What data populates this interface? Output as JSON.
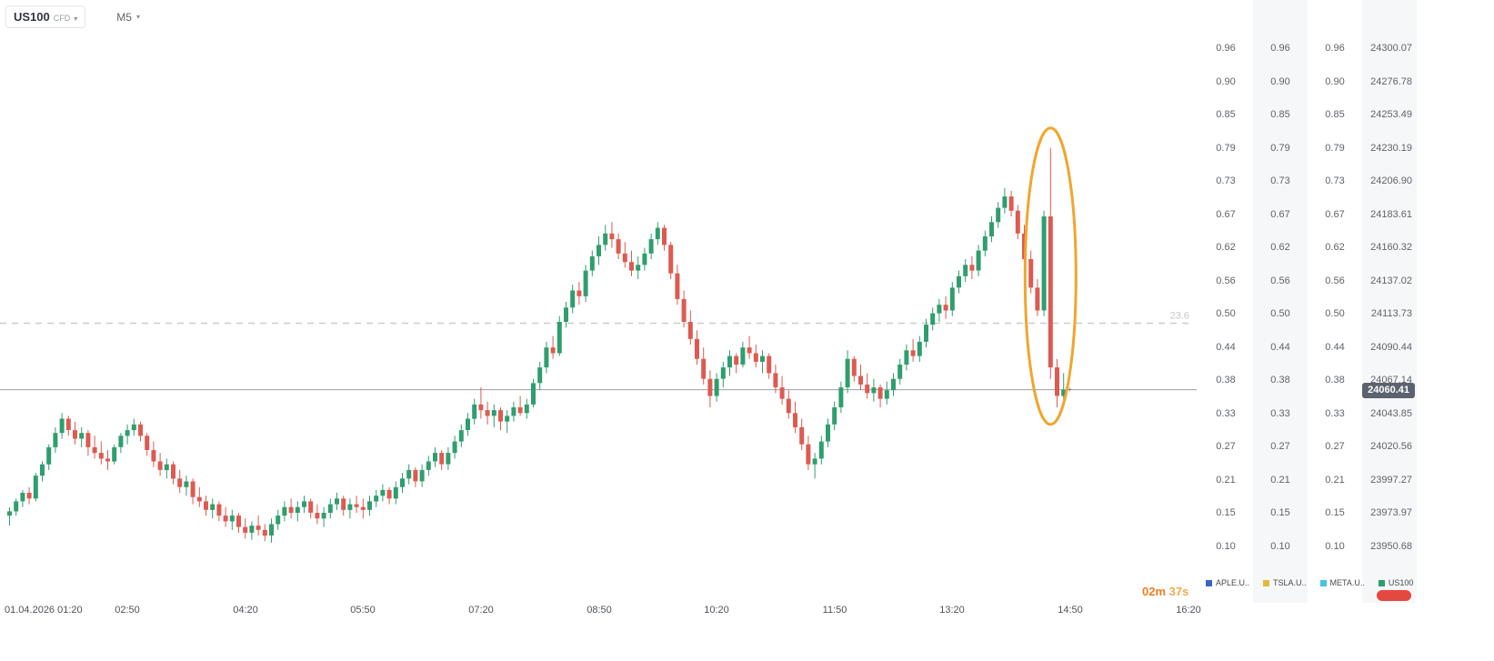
{
  "header": {
    "symbol": "US100",
    "instrument_type": "CFD",
    "timeframe": "M5"
  },
  "right_panel": {
    "percent_values": [
      "0.96",
      "0.90",
      "0.85",
      "0.79",
      "0.73",
      "0.67",
      "0.62",
      "0.56",
      "0.50",
      "0.44",
      "0.38",
      "0.33",
      "0.27",
      "0.21",
      "0.15",
      "0.10"
    ],
    "percent_column_count": 3,
    "price_values": [
      "24300.07",
      "24276.78",
      "24253.49",
      "24230.19",
      "24206.90",
      "24183.61",
      "24160.32",
      "24137.02",
      "24113.73",
      "24090.44",
      "24067.14",
      "24043.85",
      "24020.56",
      "23997.27",
      "23973.97",
      "23950.68"
    ]
  },
  "chart_data": {
    "type": "candlestick",
    "symbol": "US100",
    "interval": "M5",
    "start_time": "01.04.2026 01:20",
    "time_labels": [
      "01.04.2026 01:20",
      "02:50",
      "04:20",
      "05:50",
      "07:20",
      "08:50",
      "10:20",
      "11:50",
      "13:20",
      "14:50",
      "16:20"
    ],
    "price_axis": [
      24300.07,
      24276.78,
      24253.49,
      24230.19,
      24206.9,
      24183.61,
      24160.32,
      24137.02,
      24113.73,
      24090.44,
      24067.14,
      24043.85,
      24020.56,
      23997.27,
      23973.97,
      23950.68
    ],
    "percent_axis": [
      0.96,
      0.9,
      0.85,
      0.79,
      0.73,
      0.67,
      0.62,
      0.56,
      0.5,
      0.44,
      0.38,
      0.33,
      0.27,
      0.21,
      0.15,
      0.1
    ],
    "ylim": [
      23911,
      24334
    ],
    "fib_level": {
      "label": "23.6",
      "price": 24107
    },
    "current_price": 24060.41,
    "current_price_label": "24060.41",
    "colors": {
      "up": "#2f9e6e",
      "down": "#dd5a52"
    },
    "candles": [
      [
        23972,
        23978,
        23965,
        23975
      ],
      [
        23975,
        23984,
        23972,
        23982
      ],
      [
        23982,
        23990,
        23978,
        23988
      ],
      [
        23988,
        23992,
        23980,
        23984
      ],
      [
        23984,
        24002,
        23982,
        24000
      ],
      [
        24000,
        24010,
        23996,
        24008
      ],
      [
        24008,
        24022,
        24004,
        24020
      ],
      [
        24020,
        24034,
        24016,
        24030
      ],
      [
        24030,
        24044,
        24026,
        24040
      ],
      [
        24040,
        24042,
        24028,
        24032
      ],
      [
        24032,
        24038,
        24022,
        24026
      ],
      [
        24026,
        24034,
        24020,
        24030
      ],
      [
        24030,
        24032,
        24014,
        24020
      ],
      [
        24020,
        24028,
        24012,
        24016
      ],
      [
        24016,
        24024,
        24008,
        24012
      ],
      [
        24012,
        24018,
        24004,
        24010
      ],
      [
        24010,
        24022,
        24008,
        24020
      ],
      [
        24020,
        24030,
        24016,
        24028
      ],
      [
        24028,
        24036,
        24022,
        24032
      ],
      [
        24032,
        24040,
        24028,
        24036
      ],
      [
        24036,
        24038,
        24024,
        24028
      ],
      [
        24028,
        24030,
        24014,
        24018
      ],
      [
        24018,
        24024,
        24006,
        24010
      ],
      [
        24010,
        24016,
        24000,
        24004
      ],
      [
        24004,
        24012,
        23998,
        24008
      ],
      [
        24008,
        24010,
        23994,
        23998
      ],
      [
        23998,
        24004,
        23988,
        23992
      ],
      [
        23992,
        24000,
        23986,
        23996
      ],
      [
        23996,
        23998,
        23980,
        23985
      ],
      [
        23985,
        23992,
        23978,
        23982
      ],
      [
        23982,
        23986,
        23972,
        23976
      ],
      [
        23976,
        23984,
        23970,
        23980
      ],
      [
        23980,
        23982,
        23968,
        23972
      ],
      [
        23972,
        23978,
        23964,
        23968
      ],
      [
        23968,
        23976,
        23962,
        23972
      ],
      [
        23972,
        23974,
        23960,
        23964
      ],
      [
        23964,
        23970,
        23956,
        23960
      ],
      [
        23960,
        23968,
        23955,
        23965
      ],
      [
        23965,
        23972,
        23958,
        23962
      ],
      [
        23962,
        23966,
        23954,
        23958
      ],
      [
        23958,
        23970,
        23953,
        23966
      ],
      [
        23966,
        23976,
        23962,
        23972
      ],
      [
        23972,
        23982,
        23968,
        23978
      ],
      [
        23978,
        23984,
        23970,
        23974
      ],
      [
        23974,
        23982,
        23968,
        23978
      ],
      [
        23978,
        23986,
        23974,
        23982
      ],
      [
        23982,
        23984,
        23970,
        23974
      ],
      [
        23974,
        23980,
        23966,
        23970
      ],
      [
        23970,
        23978,
        23964,
        23974
      ],
      [
        23974,
        23984,
        23970,
        23980
      ],
      [
        23980,
        23988,
        23976,
        23984
      ],
      [
        23984,
        23986,
        23972,
        23976
      ],
      [
        23976,
        23984,
        23970,
        23980
      ],
      [
        23980,
        23986,
        23974,
        23978
      ],
      [
        23978,
        23984,
        23970,
        23976
      ],
      [
        23976,
        23986,
        23972,
        23982
      ],
      [
        23982,
        23990,
        23978,
        23986
      ],
      [
        23986,
        23994,
        23982,
        23990
      ],
      [
        23990,
        23992,
        23980,
        23984
      ],
      [
        23984,
        23996,
        23980,
        23992
      ],
      [
        23992,
        24002,
        23988,
        23998
      ],
      [
        23998,
        24008,
        23994,
        24004
      ],
      [
        24004,
        24006,
        23992,
        23996
      ],
      [
        23996,
        24008,
        23992,
        24004
      ],
      [
        24004,
        24014,
        24000,
        24010
      ],
      [
        24010,
        24020,
        24006,
        24016
      ],
      [
        24016,
        24018,
        24004,
        24008
      ],
      [
        24008,
        24020,
        24004,
        24016
      ],
      [
        24016,
        24028,
        24012,
        24024
      ],
      [
        24024,
        24036,
        24020,
        24032
      ],
      [
        24032,
        24044,
        24028,
        24040
      ],
      [
        24040,
        24054,
        24036,
        24050
      ],
      [
        24050,
        24062,
        24040,
        24046
      ],
      [
        24046,
        24052,
        24036,
        24042
      ],
      [
        24042,
        24050,
        24034,
        24046
      ],
      [
        24046,
        24048,
        24032,
        24038
      ],
      [
        24038,
        24046,
        24030,
        24042
      ],
      [
        24042,
        24052,
        24038,
        24048
      ],
      [
        24048,
        24056,
        24042,
        24044
      ],
      [
        24044,
        24054,
        24040,
        24050
      ],
      [
        24050,
        24068,
        24048,
        24065
      ],
      [
        24065,
        24080,
        24060,
        24076
      ],
      [
        24076,
        24094,
        24072,
        24090
      ],
      [
        24090,
        24098,
        24082,
        24086
      ],
      [
        24086,
        24112,
        24084,
        24108
      ],
      [
        24108,
        24122,
        24104,
        24118
      ],
      [
        24118,
        24134,
        24114,
        24130
      ],
      [
        24130,
        24136,
        24120,
        24126
      ],
      [
        24126,
        24148,
        24122,
        24144
      ],
      [
        24144,
        24158,
        24140,
        24154
      ],
      [
        24154,
        24168,
        24148,
        24162
      ],
      [
        24162,
        24176,
        24158,
        24170
      ],
      [
        24170,
        24178,
        24160,
        24166
      ],
      [
        24166,
        24170,
        24152,
        24156
      ],
      [
        24156,
        24164,
        24146,
        24150
      ],
      [
        24150,
        24158,
        24140,
        24144
      ],
      [
        24144,
        24154,
        24138,
        24148
      ],
      [
        24148,
        24160,
        24144,
        24156
      ],
      [
        24156,
        24170,
        24152,
        24166
      ],
      [
        24166,
        24178,
        24162,
        24174
      ],
      [
        24174,
        24176,
        24158,
        24162
      ],
      [
        24162,
        24164,
        24138,
        24142
      ],
      [
        24142,
        24148,
        24120,
        24124
      ],
      [
        24124,
        24130,
        24104,
        24108
      ],
      [
        24108,
        24116,
        24092,
        24096
      ],
      [
        24096,
        24102,
        24078,
        24082
      ],
      [
        24082,
        24090,
        24064,
        24068
      ],
      [
        24068,
        24074,
        24048,
        24056
      ],
      [
        24056,
        24072,
        24052,
        24068
      ],
      [
        24068,
        24080,
        24062,
        24076
      ],
      [
        24076,
        24088,
        24070,
        24084
      ],
      [
        24084,
        24086,
        24072,
        24078
      ],
      [
        24078,
        24094,
        24076,
        24090
      ],
      [
        24090,
        24098,
        24082,
        24086
      ],
      [
        24086,
        24092,
        24076,
        24080
      ],
      [
        24080,
        24088,
        24072,
        24084
      ],
      [
        24084,
        24086,
        24068,
        24072
      ],
      [
        24072,
        24078,
        24058,
        24062
      ],
      [
        24062,
        24070,
        24050,
        24054
      ],
      [
        24054,
        24060,
        24040,
        24044
      ],
      [
        24044,
        24052,
        24030,
        24034
      ],
      [
        24034,
        24040,
        24018,
        24022
      ],
      [
        24022,
        24028,
        24004,
        24008
      ],
      [
        24008,
        24016,
        23998,
        24012
      ],
      [
        24012,
        24028,
        24008,
        24024
      ],
      [
        24024,
        24040,
        24020,
        24036
      ],
      [
        24036,
        24052,
        24032,
        24048
      ],
      [
        24048,
        24066,
        24044,
        24062
      ],
      [
        24062,
        24088,
        24058,
        24082
      ],
      [
        24082,
        24084,
        24066,
        24070
      ],
      [
        24070,
        24078,
        24060,
        24064
      ],
      [
        24064,
        24072,
        24054,
        24058
      ],
      [
        24058,
        24068,
        24052,
        24062
      ],
      [
        24062,
        24064,
        24048,
        24054
      ],
      [
        24054,
        24066,
        24050,
        24060
      ],
      [
        24060,
        24072,
        24056,
        24068
      ],
      [
        24068,
        24082,
        24064,
        24078
      ],
      [
        24078,
        24092,
        24074,
        24088
      ],
      [
        24088,
        24096,
        24080,
        24084
      ],
      [
        24084,
        24098,
        24080,
        24094
      ],
      [
        24094,
        24110,
        24090,
        24106
      ],
      [
        24106,
        24118,
        24102,
        24114
      ],
      [
        24114,
        24124,
        24108,
        24120
      ],
      [
        24120,
        24126,
        24110,
        24116
      ],
      [
        24116,
        24136,
        24112,
        24132
      ],
      [
        24132,
        24144,
        24128,
        24140
      ],
      [
        24140,
        24152,
        24136,
        24148
      ],
      [
        24148,
        24154,
        24138,
        24144
      ],
      [
        24144,
        24162,
        24140,
        24158
      ],
      [
        24158,
        24172,
        24154,
        24168
      ],
      [
        24168,
        24182,
        24164,
        24178
      ],
      [
        24178,
        24192,
        24174,
        24188
      ],
      [
        24188,
        24202,
        24184,
        24196
      ],
      [
        24196,
        24200,
        24182,
        24186
      ],
      [
        24186,
        24190,
        24166,
        24170
      ],
      [
        24170,
        24176,
        24148,
        24152
      ],
      [
        24152,
        24158,
        24128,
        24132
      ],
      [
        24132,
        24138,
        24112,
        24116
      ],
      [
        24116,
        24186,
        24112,
        24182
      ],
      [
        24182,
        24230,
        24068,
        24076
      ],
      [
        24076,
        24082,
        24048,
        24056
      ],
      [
        24056,
        24072,
        24050,
        24060.41
      ]
    ]
  },
  "annotation": {
    "type": "ellipse",
    "color": "#f1a52c",
    "center_index": 159,
    "price_high": 24244,
    "price_low": 24036,
    "rx": 28
  },
  "footer": {
    "countdown": {
      "minutes": "02m",
      "seconds": "37s"
    },
    "legend": [
      {
        "label": "APLE.U..",
        "color": "#3a66c9"
      },
      {
        "label": "TSLA.U..",
        "color": "#e3b93c"
      },
      {
        "label": "META.U..",
        "color": "#41c5e0"
      },
      {
        "label": "US100",
        "color": "#2f9e6e"
      }
    ],
    "action_button_color": "#e4493f"
  }
}
